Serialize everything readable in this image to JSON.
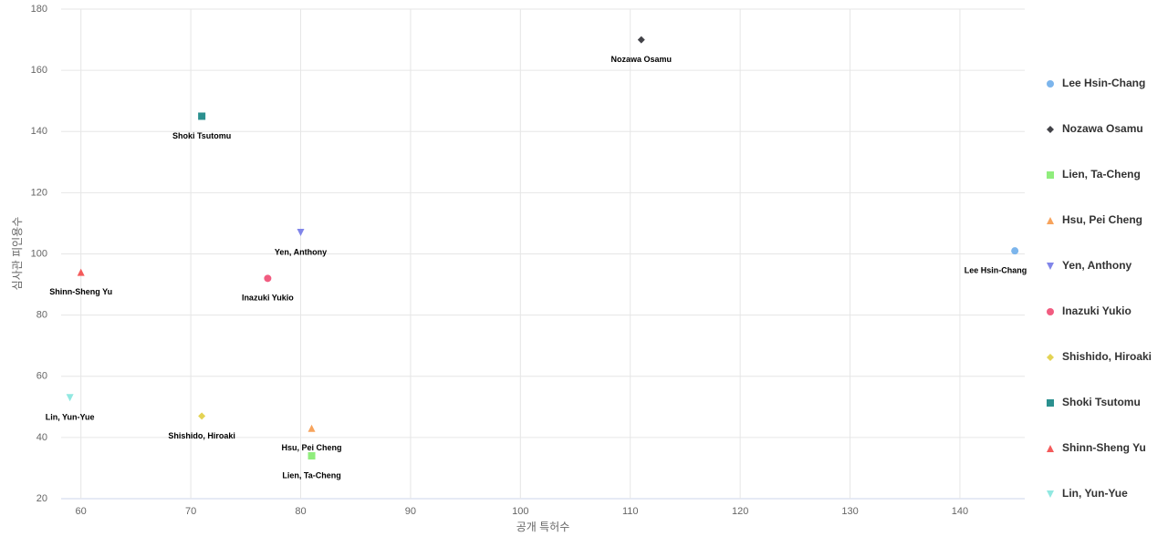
{
  "chart_data": {
    "type": "scatter",
    "x_label": "공개 특허수",
    "y_label": "심사관 피인용수",
    "xlim": [
      58.2,
      145.9
    ],
    "xticks": [
      60,
      70,
      80,
      90,
      100,
      110,
      120,
      130,
      140
    ],
    "ylim": [
      20,
      180
    ],
    "yticks": [
      20,
      40,
      60,
      80,
      100,
      120,
      140,
      160,
      180
    ],
    "grid": true,
    "legend": "right",
    "data_labels": true,
    "series": [
      {
        "name": "Lee Hsin-Chang",
        "color": "#7cb5ec",
        "marker": "circle",
        "x": [
          145
        ],
        "values": [
          101
        ]
      },
      {
        "name": "Nozawa Osamu",
        "color": "#434348",
        "marker": "diamond",
        "x": [
          111
        ],
        "values": [
          170
        ]
      },
      {
        "name": "Lien, Ta-Cheng",
        "color": "#90ed7d",
        "marker": "square",
        "x": [
          81
        ],
        "values": [
          34
        ]
      },
      {
        "name": "Hsu, Pei Cheng",
        "color": "#f7a35c",
        "marker": "triangle",
        "x": [
          81
        ],
        "values": [
          43
        ]
      },
      {
        "name": "Yen, Anthony",
        "color": "#8085e9",
        "marker": "triangle-down",
        "x": [
          80
        ],
        "values": [
          107
        ]
      },
      {
        "name": "Inazuki Yukio",
        "color": "#f15c80",
        "marker": "circle",
        "x": [
          77
        ],
        "values": [
          92
        ]
      },
      {
        "name": "Shishido, Hiroaki",
        "color": "#e4d354",
        "marker": "diamond",
        "x": [
          71
        ],
        "values": [
          47
        ]
      },
      {
        "name": "Shoki Tsutomu",
        "color": "#2b908f",
        "marker": "square",
        "x": [
          71
        ],
        "values": [
          145
        ]
      },
      {
        "name": "Shinn-Sheng Yu",
        "color": "#f45b5b",
        "marker": "triangle",
        "x": [
          60
        ],
        "values": [
          94
        ]
      },
      {
        "name": "Lin, Yun-Yue",
        "color": "#91e8e1",
        "marker": "triangle-down",
        "x": [
          59
        ],
        "values": [
          53
        ]
      }
    ]
  }
}
